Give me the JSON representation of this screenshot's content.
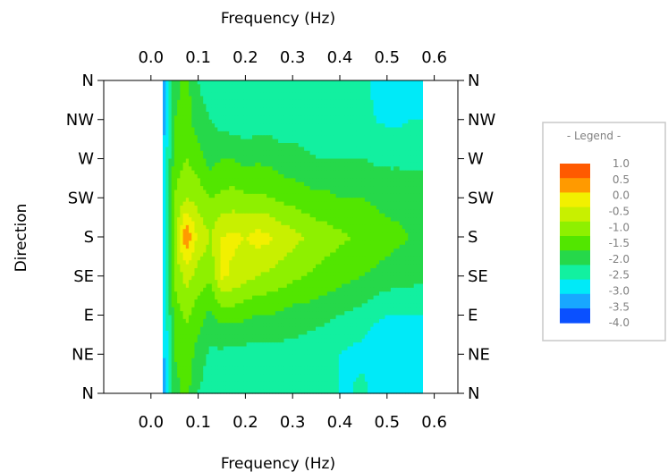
{
  "chart_data": {
    "type": "heatmap",
    "title": "",
    "xlabel_top": "Frequency (Hz)",
    "xlabel_bottom": "Frequency (Hz)",
    "ylabel": "Direction",
    "xlim": [
      -0.1,
      0.65
    ],
    "x_ticks": [
      0.0,
      0.1,
      0.2,
      0.3,
      0.4,
      0.5,
      0.6
    ],
    "x_tick_labels": [
      "0.0",
      "0.1",
      "0.2",
      "0.3",
      "0.4",
      "0.5",
      "0.6"
    ],
    "x_data_range": [
      0.025,
      0.575
    ],
    "y_tick_labels": [
      "N",
      "NW",
      "W",
      "SW",
      "S",
      "SE",
      "E",
      "NE",
      "N"
    ],
    "legend": {
      "title": "- Legend -",
      "placement": "right",
      "levels": [
        "1.0",
        "0.5",
        "0.0",
        "-0.5",
        "-1.0",
        "-1.5",
        "-2.0",
        "-2.5",
        "-3.0",
        "-3.5",
        "-4.0"
      ],
      "colors": [
        "#ff5a00",
        "#ff9a00",
        "#f2f000",
        "#c8f000",
        "#8ef000",
        "#52e600",
        "#26d84a",
        "#12f0a0",
        "#00eaf8",
        "#18a8ff",
        "#0a50ff"
      ]
    },
    "grid": false,
    "x": [
      0.025,
      0.05,
      0.075,
      0.1,
      0.125,
      0.15,
      0.175,
      0.2,
      0.225,
      0.25,
      0.275,
      0.3,
      0.325,
      0.35,
      0.375,
      0.4,
      0.425,
      0.45,
      0.475,
      0.5,
      0.525,
      0.55,
      0.575
    ],
    "y": [
      "N",
      "NW",
      "W",
      "SW",
      "S",
      "SE",
      "E",
      "NE",
      "N"
    ],
    "z": [
      [
        -3.8,
        -2.2,
        -1.8,
        -2.5,
        -2.8,
        -2.8,
        -2.8,
        -2.8,
        -2.8,
        -2.8,
        -2.8,
        -2.8,
        -2.8,
        -2.8,
        -3.0,
        -3.0,
        -3.0,
        -2.8,
        -3.2,
        -3.4,
        -3.4,
        -3.3,
        -3.2
      ],
      [
        -3.8,
        -2.0,
        -1.8,
        -2.3,
        -2.5,
        -2.7,
        -2.8,
        -2.8,
        -2.8,
        -2.8,
        -2.8,
        -2.8,
        -2.8,
        -2.7,
        -2.8,
        -2.8,
        -2.8,
        -2.7,
        -3.0,
        -3.1,
        -3.1,
        -3.0,
        -3.0
      ],
      [
        -3.6,
        -1.8,
        -1.5,
        -1.8,
        -2.2,
        -2.0,
        -2.0,
        -2.2,
        -2.1,
        -2.1,
        -2.3,
        -2.3,
        -2.4,
        -2.5,
        -2.5,
        -2.5,
        -2.5,
        -2.5,
        -2.6,
        -2.6,
        -2.6,
        -2.6,
        -2.6
      ],
      [
        -3.5,
        -1.5,
        -1.0,
        -1.2,
        -1.5,
        -1.4,
        -1.3,
        -1.4,
        -1.4,
        -1.5,
        -1.6,
        -1.7,
        -1.8,
        -1.9,
        -1.9,
        -2.0,
        -2.0,
        -2.0,
        -2.1,
        -2.2,
        -2.2,
        -2.3,
        -2.3
      ],
      [
        -3.5,
        -1.2,
        0.5,
        -0.6,
        -1.0,
        -0.5,
        -0.4,
        -0.5,
        -0.3,
        -0.4,
        -0.7,
        -0.8,
        -1.0,
        -1.2,
        -1.3,
        -1.4,
        -1.5,
        -1.6,
        -1.7,
        -1.8,
        -1.9,
        -2.0,
        -2.0
      ],
      [
        -3.6,
        -1.4,
        -0.8,
        -1.2,
        -1.4,
        -0.4,
        -0.6,
        -0.8,
        -1.0,
        -1.1,
        -1.2,
        -1.4,
        -1.5,
        -1.6,
        -1.7,
        -1.8,
        -1.9,
        -2.0,
        -2.1,
        -2.2,
        -2.3,
        -2.3,
        -2.4
      ],
      [
        -3.6,
        -1.8,
        -1.4,
        -1.8,
        -2.1,
        -1.8,
        -1.8,
        -1.9,
        -2.0,
        -2.0,
        -2.1,
        -2.2,
        -2.2,
        -2.3,
        -2.4,
        -2.5,
        -2.6,
        -2.7,
        -2.9,
        -3.0,
        -3.0,
        -3.0,
        -3.0
      ],
      [
        -3.7,
        -2.0,
        -1.7,
        -2.2,
        -2.6,
        -2.6,
        -2.7,
        -2.7,
        -2.7,
        -2.7,
        -2.7,
        -2.7,
        -2.8,
        -2.9,
        -2.9,
        -3.0,
        -3.1,
        -3.2,
        -3.4,
        -3.5,
        -3.5,
        -3.5,
        -3.4
      ],
      [
        -3.8,
        -2.2,
        -1.8,
        -2.5,
        -2.8,
        -2.8,
        -2.8,
        -2.8,
        -2.8,
        -2.8,
        -2.8,
        -2.8,
        -2.8,
        -2.8,
        -3.0,
        -3.0,
        -3.0,
        -2.8,
        -3.2,
        -3.4,
        -3.4,
        -3.3,
        -3.2
      ]
    ]
  }
}
